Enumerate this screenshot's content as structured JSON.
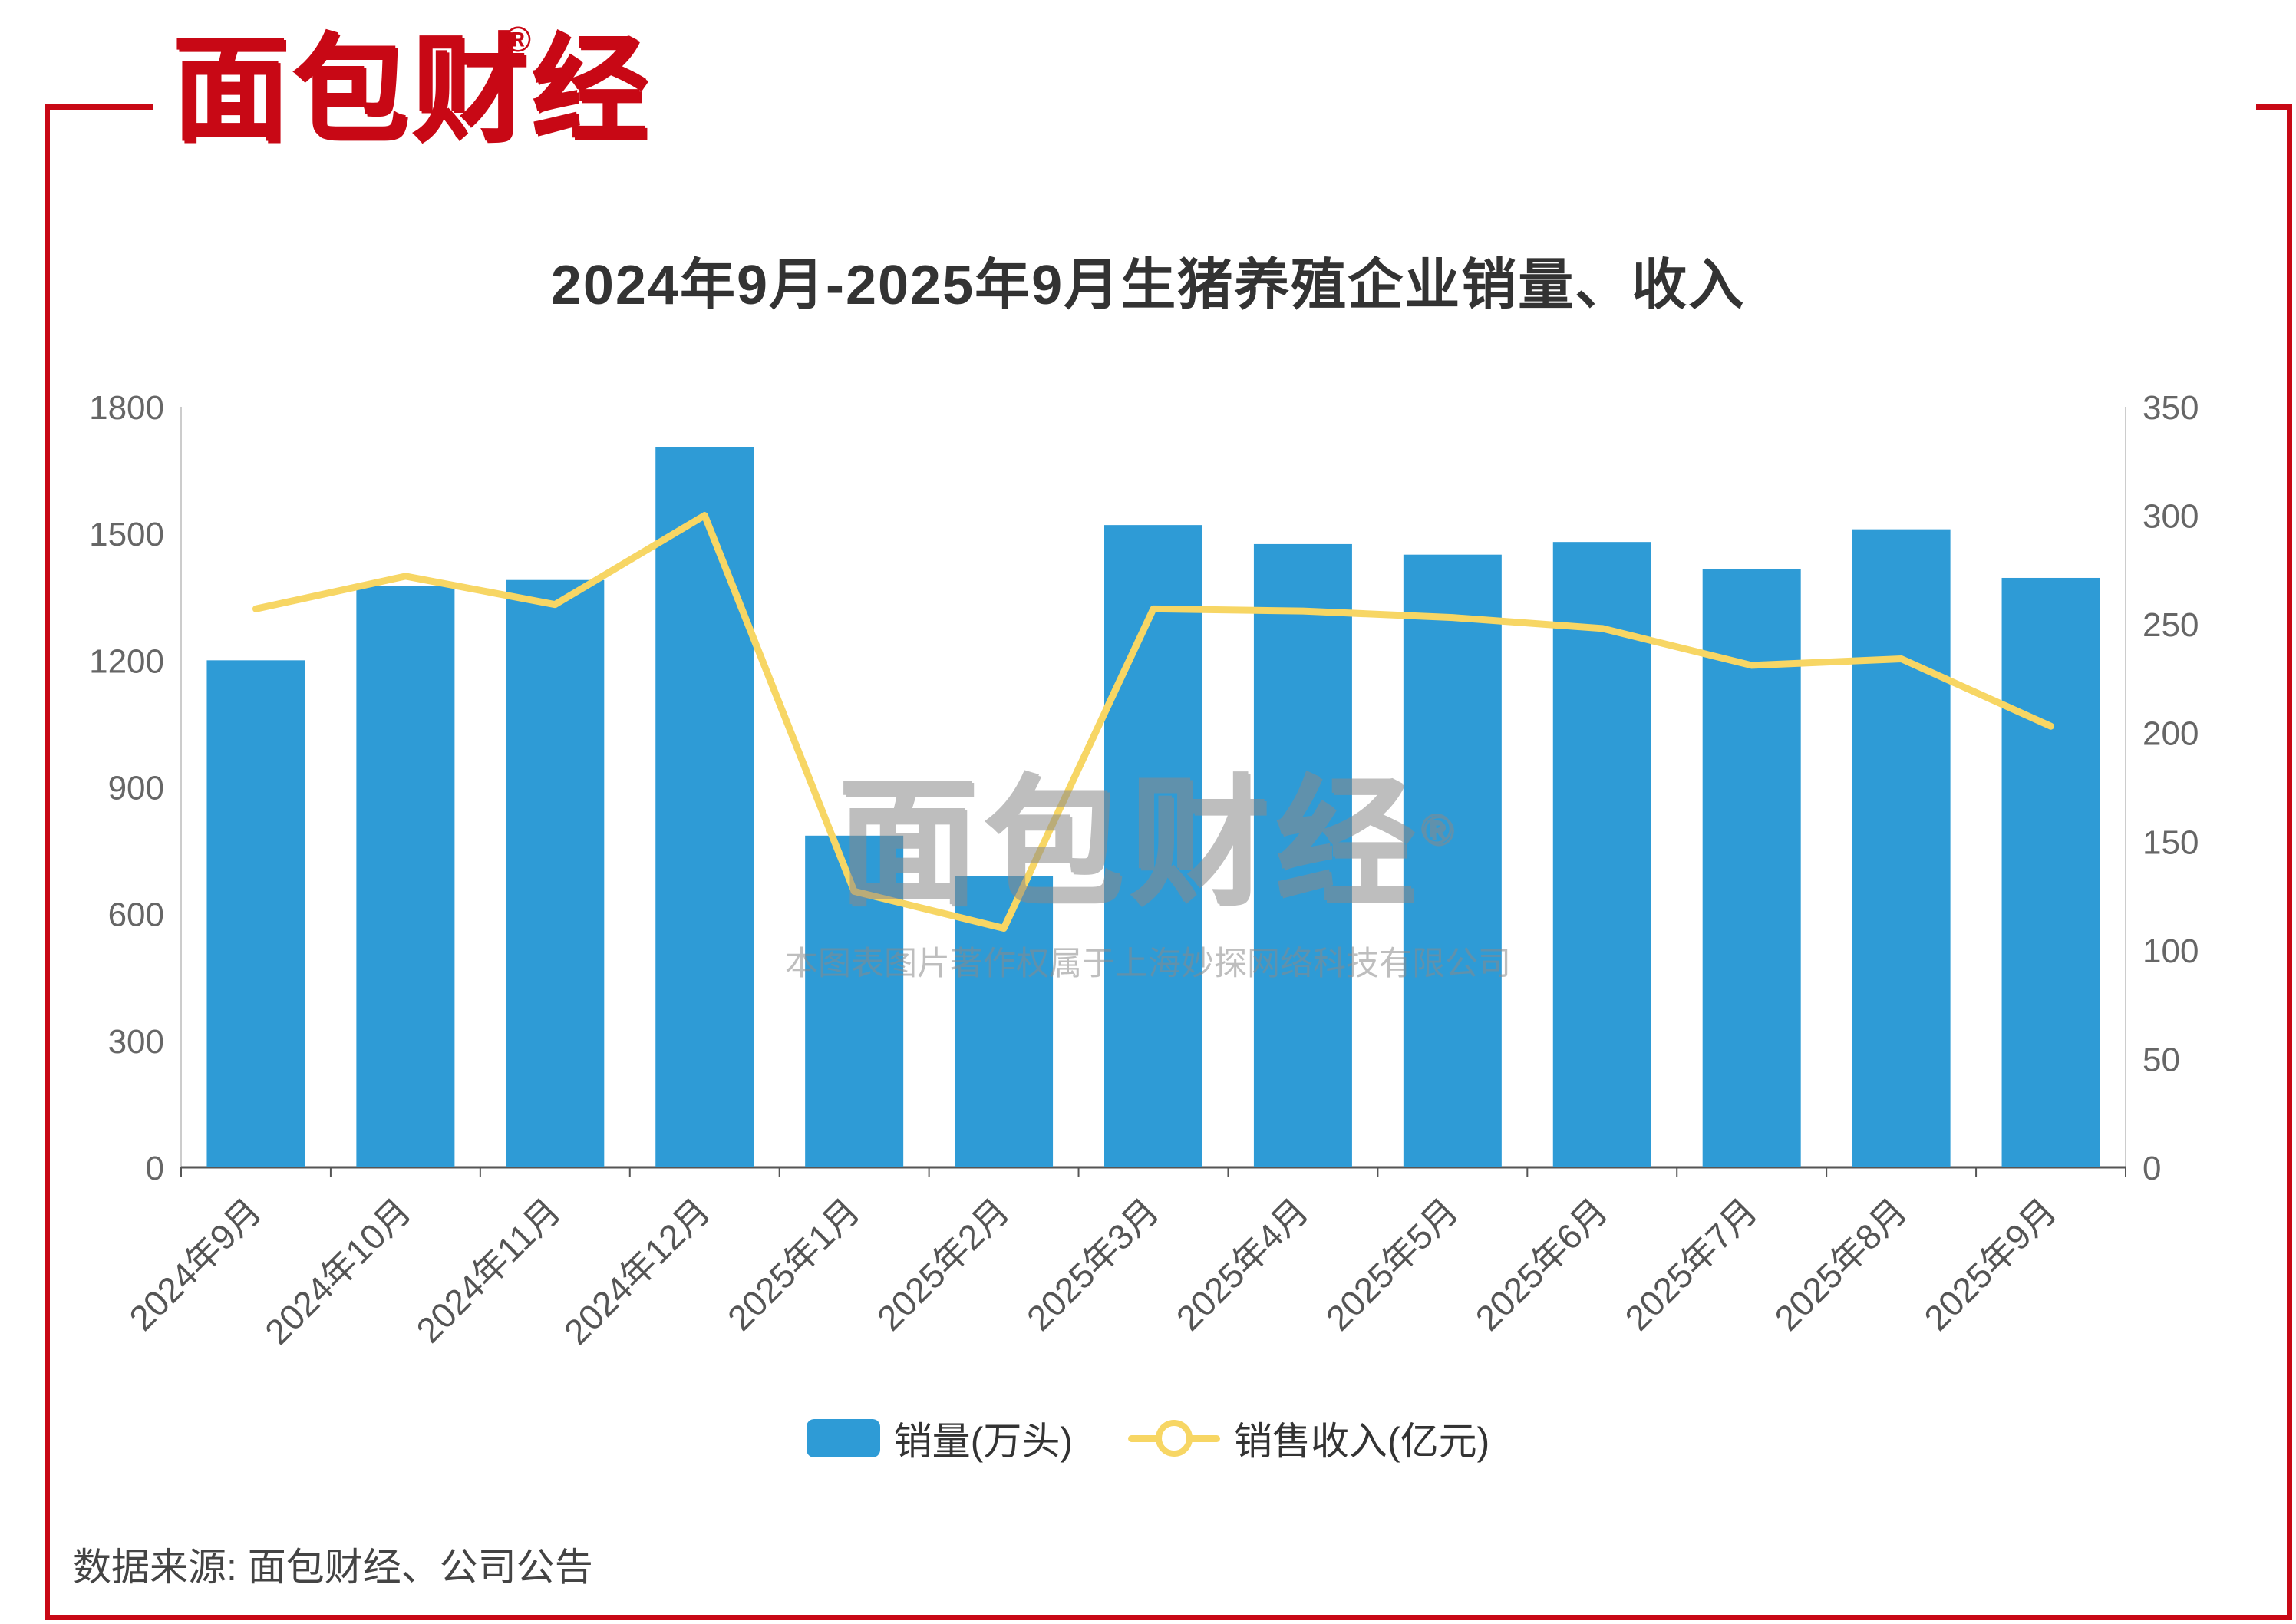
{
  "logo": {
    "text": "面包财经",
    "registered_mark": "®",
    "color": "#C80815"
  },
  "frame": {
    "color": "#C80815"
  },
  "chart_data": {
    "type": "bar+line",
    "title": "2024年9月-2025年9月生猪养殖企业销量、收入",
    "categories": [
      "2024年9月",
      "2024年10月",
      "2024年11月",
      "2024年12月",
      "2025年1月",
      "2025年2月",
      "2025年3月",
      "2025年4月",
      "2025年5月",
      "2025年6月",
      "2025年7月",
      "2025年8月",
      "2025年9月"
    ],
    "series": [
      {
        "name": "销量(万头)",
        "type": "bar",
        "axis": "left",
        "color": "#2E9BD6",
        "values": [
          1200,
          1375,
          1390,
          1705,
          785,
          690,
          1520,
          1475,
          1450,
          1480,
          1415,
          1510,
          1395
        ]
      },
      {
        "name": "销售收入(亿元)",
        "type": "line",
        "axis": "right",
        "color": "#F7D664",
        "values": [
          257,
          272,
          259,
          300,
          127,
          110,
          257,
          256,
          253,
          248,
          231,
          234,
          203
        ]
      }
    ],
    "left_axis": {
      "min": 0,
      "max": 1800,
      "ticks": [
        0,
        300,
        600,
        900,
        1200,
        1500,
        1800
      ]
    },
    "right_axis": {
      "min": 0,
      "max": 350,
      "ticks": [
        0,
        50,
        100,
        150,
        200,
        250,
        300,
        350
      ]
    },
    "grid": false,
    "legend_position": "bottom",
    "axis_label_rotation": -45
  },
  "watermark": {
    "text": "面包财经",
    "registered_mark": "®",
    "subtext": "本图表图片著作权属于上海妙探网络科技有限公司"
  },
  "footer": {
    "source": "数据来源: 面包财经、公司公告"
  }
}
